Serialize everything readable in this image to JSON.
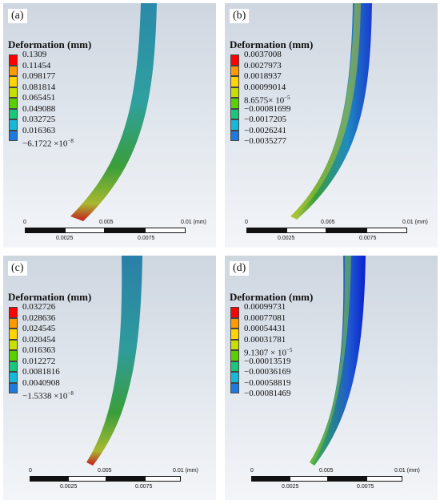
{
  "legend_title": "Deformation (mm)",
  "colors": {
    "colorbar": [
      "#ff0000",
      "#ff9a00",
      "#ffd400",
      "#c8e000",
      "#5ad000",
      "#1ac77a",
      "#1ab8d8",
      "#1f7ae0",
      "#0000e6"
    ],
    "beam_tip": "#c42020",
    "beam_mid": "#3a9e3a",
    "beam_top": "#2a8aa8",
    "beam_blue_edge": "#1a3ad0"
  },
  "panels": [
    {
      "tag": "(a)",
      "values": [
        "0.1309",
        "0.11454",
        "0.098177",
        "0.081814",
        "0.065451",
        "0.049088",
        "0.032725",
        "0.016363",
        "−6.1722 ×10"
      ],
      "last_exp": "−8",
      "scale": {
        "ticks_top": [
          "0",
          "0.005",
          "0.01 (mm)"
        ],
        "ticks_bottom": [
          "0.0025",
          "0.0075"
        ]
      }
    },
    {
      "tag": "(b)",
      "values": [
        "0.0037008",
        "0.0027973",
        "0.0018937",
        "0.00099014",
        "8.6575× 10",
        "−0.00081699",
        "−0.0017205",
        "−0.0026241",
        "−0.0035277"
      ],
      "mid_exp": "−5",
      "scale": {
        "ticks_top": [
          "0",
          "0.005",
          "0.01 (mm)"
        ],
        "ticks_bottom": [
          "0.0025",
          "0.0075"
        ]
      }
    },
    {
      "tag": "(c)",
      "values": [
        "0.032726",
        "0.028636",
        "0.024545",
        "0.020454",
        "0.016363",
        "0.012272",
        "0.0081816",
        "0.0040908",
        "−1.5338 ×10"
      ],
      "last_exp": "−8",
      "scale": {
        "ticks_top": [
          "0",
          "0.005",
          "0.01 (mm)"
        ],
        "ticks_bottom": [
          "0.0025",
          "0.0075"
        ]
      }
    },
    {
      "tag": "(d)",
      "values": [
        "0.00099731",
        "0.00077081",
        "0.00054431",
        "0.00031781",
        "9.1307 × 10",
        "−0.00013519",
        "−0.00036169",
        "−0.00058819",
        "−0.00081469"
      ],
      "mid_exp": "−5",
      "scale": {
        "ticks_top": [
          "0",
          "0.005",
          "0.01 (mm)"
        ],
        "ticks_bottom": [
          "0.0025",
          "0.0075"
        ]
      }
    }
  ]
}
